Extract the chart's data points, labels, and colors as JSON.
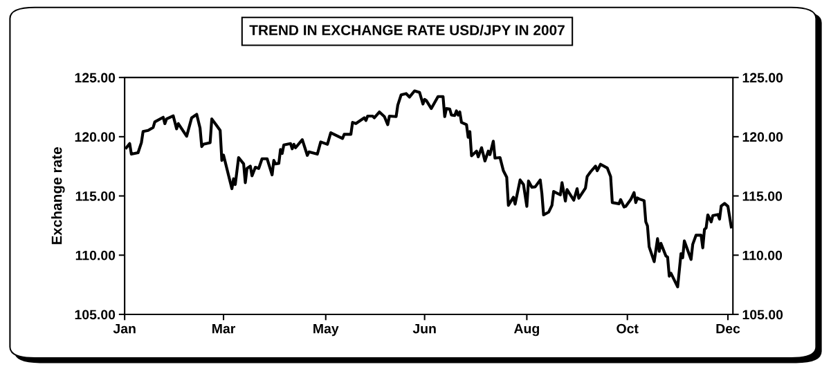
{
  "chart_data": {
    "type": "line",
    "title": "TREND IN EXCHANGE RATE USD/JPY IN 2007",
    "ylabel": "Exchange rate",
    "x": [
      "2007-01-03",
      "2007-01-05",
      "2007-01-06",
      "2007-01-10",
      "2007-01-12",
      "2007-01-13",
      "2007-01-16",
      "2007-01-19",
      "2007-01-20",
      "2007-01-25",
      "2007-01-26",
      "2007-01-27",
      "2007-01-31",
      "2007-02-02",
      "2007-02-03",
      "2007-02-08",
      "2007-02-11",
      "2007-02-14",
      "2007-02-16",
      "2007-02-17",
      "2007-02-18",
      "2007-02-22",
      "2007-02-23",
      "2007-02-26",
      "2007-02-28",
      "2007-03-01",
      "2007-03-02",
      "2007-03-05",
      "2007-03-07",
      "2007-03-08",
      "2007-03-09",
      "2007-03-11",
      "2007-03-14",
      "2007-03-15",
      "2007-03-16",
      "2007-03-18",
      "2007-03-19",
      "2007-03-21",
      "2007-03-23",
      "2007-03-25",
      "2007-03-28",
      "2007-03-31",
      "2007-04-01",
      "2007-04-02",
      "2007-04-04",
      "2007-04-05",
      "2007-04-06",
      "2007-04-07",
      "2007-04-11",
      "2007-04-12",
      "2007-04-13",
      "2007-04-14",
      "2007-04-18",
      "2007-04-21",
      "2007-04-22",
      "2007-04-27",
      "2007-04-29",
      "2007-05-01",
      "2007-05-03",
      "2007-05-05",
      "2007-05-12",
      "2007-05-13",
      "2007-05-17",
      "2007-05-18",
      "2007-05-20",
      "2007-05-25",
      "2007-05-26",
      "2007-05-27",
      "2007-05-30",
      "2007-05-31",
      "2007-06-03",
      "2007-06-06",
      "2007-06-08",
      "2007-06-09",
      "2007-06-13",
      "2007-06-14",
      "2007-06-16",
      "2007-06-19",
      "2007-06-21",
      "2007-06-24",
      "2007-06-27",
      "2007-06-29",
      "2007-06-30",
      "2007-07-01",
      "2007-07-04",
      "2007-07-08",
      "2007-07-11",
      "2007-07-12",
      "2007-07-13",
      "2007-07-15",
      "2007-07-16",
      "2007-07-18",
      "2007-07-19",
      "2007-07-20",
      "2007-07-21",
      "2007-07-22",
      "2007-07-25",
      "2007-07-26",
      "2007-07-27",
      "2007-07-28",
      "2007-07-31",
      "2007-08-01",
      "2007-08-03",
      "2007-08-05",
      "2007-08-07",
      "2007-08-08",
      "2007-08-10",
      "2007-08-11",
      "2007-08-14",
      "2007-08-16",
      "2007-08-18",
      "2007-08-19",
      "2007-08-22",
      "2007-08-23",
      "2007-08-26",
      "2007-08-28",
      "2007-08-30",
      "2007-08-31",
      "2007-09-02",
      "2007-09-04",
      "2007-09-07",
      "2007-09-08",
      "2007-09-09",
      "2007-09-12",
      "2007-09-14",
      "2007-09-15",
      "2007-09-19",
      "2007-09-20",
      "2007-09-22",
      "2007-09-23",
      "2007-09-27",
      "2007-09-29",
      "2007-09-30",
      "2007-10-04",
      "2007-10-05",
      "2007-10-07",
      "2007-10-10",
      "2007-10-11",
      "2007-10-13",
      "2007-10-17",
      "2007-10-19",
      "2007-10-20",
      "2007-10-24",
      "2007-10-25",
      "2007-10-27",
      "2007-10-28",
      "2007-10-31",
      "2007-11-02",
      "2007-11-03",
      "2007-11-04",
      "2007-11-05",
      "2007-11-08",
      "2007-11-09",
      "2007-11-10",
      "2007-11-11",
      "2007-11-14",
      "2007-11-16",
      "2007-11-17",
      "2007-11-18",
      "2007-11-21",
      "2007-11-22",
      "2007-11-23",
      "2007-11-24",
      "2007-11-28",
      "2007-11-30",
      "2007-12-01",
      "2007-12-02",
      "2007-12-06",
      "2007-12-07",
      "2007-12-09",
      "2007-12-12",
      "2007-12-13",
      "2007-12-14",
      "2007-12-15",
      "2007-12-16",
      "2007-12-18",
      "2007-12-19",
      "2007-12-22",
      "2007-12-23",
      "2007-12-24",
      "2007-12-26",
      "2007-12-28",
      "2007-12-30"
    ],
    "series": [
      {
        "color": "#000000",
        "values": [
          119.07,
          119.42,
          118.53,
          118.65,
          119.5,
          120.44,
          120.53,
          120.78,
          121.25,
          121.64,
          121.1,
          121.5,
          121.76,
          120.67,
          121.11,
          120.04,
          121.6,
          121.89,
          120.72,
          119.17,
          119.36,
          119.5,
          121.5,
          120.92,
          120.53,
          118.0,
          118.45,
          116.74,
          115.61,
          116.45,
          115.96,
          118.24,
          117.71,
          116.12,
          117.32,
          117.52,
          116.7,
          117.42,
          117.32,
          118.14,
          118.14,
          116.78,
          118.0,
          117.71,
          117.75,
          118.92,
          118.59,
          119.31,
          119.42,
          118.98,
          119.36,
          119.07,
          119.75,
          118.43,
          118.72,
          118.53,
          119.56,
          119.46,
          119.36,
          120.34,
          119.85,
          120.2,
          120.2,
          121.21,
          121.11,
          121.6,
          121.37,
          121.74,
          121.74,
          121.6,
          122.09,
          121.7,
          121.02,
          121.74,
          121.7,
          122.67,
          123.54,
          123.64,
          123.35,
          123.87,
          123.74,
          122.76,
          123.15,
          123.06,
          122.38,
          123.39,
          123.39,
          121.7,
          122.38,
          122.34,
          121.83,
          121.79,
          122.18,
          121.83,
          122.09,
          121.21,
          121.02,
          119.95,
          120.43,
          118.39,
          118.78,
          118.3,
          119.07,
          117.95,
          118.78,
          118.49,
          119.62,
          118.2,
          118.24,
          117.13,
          116.58,
          114.21,
          114.89,
          114.31,
          116.35,
          115.97,
          114.12,
          116.26,
          115.73,
          115.77,
          116.35,
          115.19,
          113.4,
          113.63,
          114.21,
          115.38,
          115.09,
          116.12,
          114.57,
          115.54,
          114.64,
          115.61,
          114.8,
          115.67,
          116.64,
          117.03,
          117.52,
          117.13,
          117.67,
          117.36,
          116.64,
          114.44,
          114.34,
          114.69,
          114.07,
          114.12,
          114.69,
          115.28,
          114.44,
          114.83,
          114.75,
          114.6,
          112.81,
          112.46,
          110.71,
          109.45,
          111.39,
          110.32,
          111.0,
          109.93,
          109.84,
          108.23,
          108.48,
          107.32,
          110.13,
          109.78,
          111.2,
          109.64,
          110.91,
          111.69,
          111.69,
          110.62,
          112.17,
          112.31,
          113.4,
          112.81,
          113.34,
          113.43,
          113.04,
          114.15,
          114.37,
          114.12,
          112.38
        ]
      }
    ],
    "xlim": [
      "2007-01-02",
      "2007-12-31"
    ],
    "xticks": [
      {
        "value": "2007-01-02",
        "label": "Jan"
      },
      {
        "value": "2007-03-02",
        "label": "Mar"
      },
      {
        "value": "2007-05-02",
        "label": "May"
      },
      {
        "value": "2007-06-30",
        "label": "Jun"
      },
      {
        "value": "2007-08-30",
        "label": "Aug"
      },
      {
        "value": "2007-10-29",
        "label": "Oct"
      },
      {
        "value": "2007-12-28",
        "label": "Dec"
      }
    ],
    "ylim": [
      105,
      125
    ],
    "yticks": [
      {
        "value": 105,
        "label": "105.00"
      },
      {
        "value": 110,
        "label": "110.00"
      },
      {
        "value": 115,
        "label": "115.00"
      },
      {
        "value": 120,
        "label": "120.00"
      },
      {
        "value": 125,
        "label": "125.00"
      }
    ],
    "y2lim": [
      105,
      125
    ],
    "y2ticks": [
      {
        "value": 105,
        "label": "105.00"
      },
      {
        "value": 110,
        "label": "110.00"
      },
      {
        "value": 115,
        "label": "115.00"
      },
      {
        "value": 120,
        "label": "120.00"
      },
      {
        "value": 125,
        "label": "125.00"
      }
    ],
    "grid": false,
    "marker": "none",
    "line_style": "solid"
  }
}
